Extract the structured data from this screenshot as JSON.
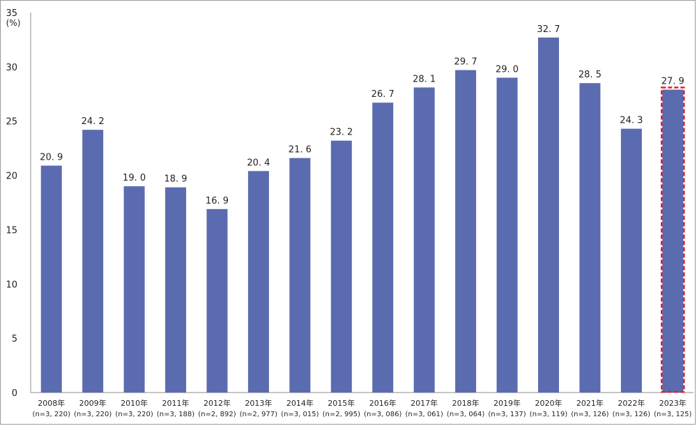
{
  "chart_data": {
    "type": "bar",
    "unit_label": "(%)",
    "ylim": [
      0,
      35
    ],
    "yticks": [
      0,
      5,
      10,
      15,
      20,
      25,
      30,
      35
    ],
    "grid": false,
    "bar_color": "#5b6bb0",
    "highlight_color": "#e0202a",
    "highlight_index": 15,
    "categories": [
      {
        "year": "2008年",
        "n": "(n=3, 220)"
      },
      {
        "year": "2009年",
        "n": "(n=3, 220)"
      },
      {
        "year": "2010年",
        "n": "(n=3, 220)"
      },
      {
        "year": "2011年",
        "n": "(n=3, 188)"
      },
      {
        "year": "2012年",
        "n": "(n=2, 892)"
      },
      {
        "year": "2013年",
        "n": "(n=2, 977)"
      },
      {
        "year": "2014年",
        "n": "(n=3, 015)"
      },
      {
        "year": "2015年",
        "n": "(n=2, 995)"
      },
      {
        "year": "2016年",
        "n": "(n=3, 086)"
      },
      {
        "year": "2017年",
        "n": "(n=3, 061)"
      },
      {
        "year": "2018年",
        "n": "(n=3, 064)"
      },
      {
        "year": "2019年",
        "n": "(n=3, 137)"
      },
      {
        "year": "2020年",
        "n": "(n=3, 119)"
      },
      {
        "year": "2021年",
        "n": "(n=3, 126)"
      },
      {
        "year": "2022年",
        "n": "(n=3, 126)"
      },
      {
        "year": "2023年",
        "n": "(n=3, 125)"
      }
    ],
    "values": [
      20.9,
      24.2,
      19.0,
      18.9,
      16.9,
      20.4,
      21.6,
      23.2,
      26.7,
      28.1,
      29.7,
      29.0,
      32.7,
      28.5,
      24.3,
      27.9
    ],
    "value_labels": [
      "20. 9",
      "24. 2",
      "19. 0",
      "18. 9",
      "16. 9",
      "20. 4",
      "21. 6",
      "23. 2",
      "26. 7",
      "28. 1",
      "29. 7",
      "29. 0",
      "32. 7",
      "28. 5",
      "24. 3",
      "27. 9"
    ]
  }
}
